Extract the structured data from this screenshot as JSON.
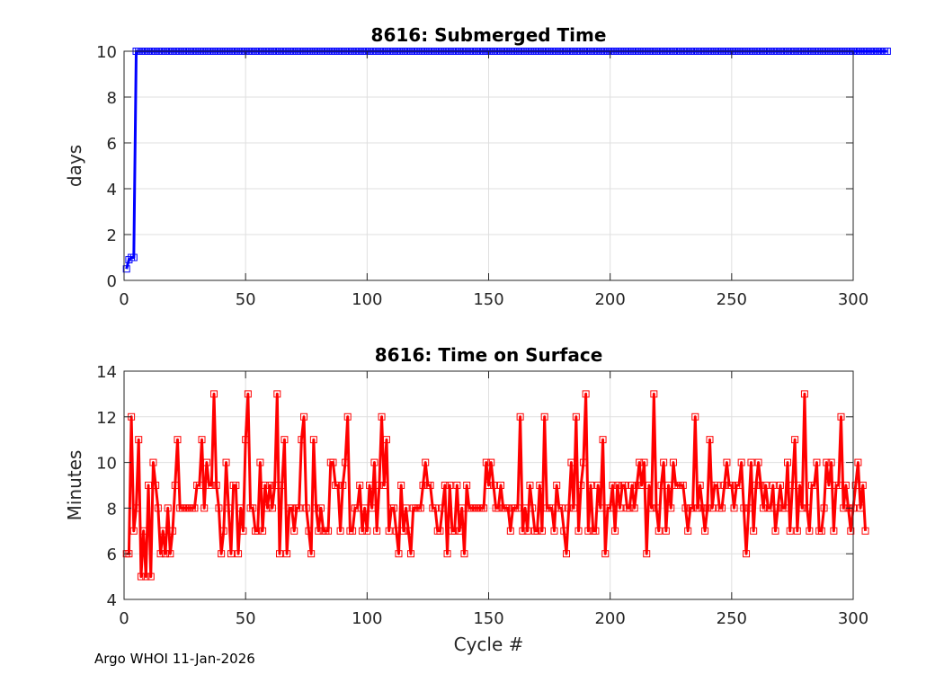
{
  "footer": "Argo WHOI 11-Jan-2026",
  "chart_data": [
    {
      "type": "line",
      "title": "8616: Submerged Time",
      "xlabel": "",
      "ylabel": "days",
      "xlim": [
        0,
        300
      ],
      "ylim": [
        0,
        10
      ],
      "xticks": [
        0,
        50,
        100,
        150,
        200,
        250,
        300
      ],
      "yticks": [
        0,
        2,
        4,
        6,
        8,
        10
      ],
      "grid": true,
      "marker": "square",
      "color": "#0000ff",
      "series": [
        {
          "x_start": 1,
          "values": [
            0.5,
            0.9,
            1.0,
            1.0,
            10,
            10,
            10,
            10,
            10,
            10,
            10,
            10,
            10,
            10,
            10,
            10,
            10,
            10,
            10,
            10,
            10,
            10,
            10,
            10,
            10,
            10,
            10,
            10,
            10,
            10,
            10,
            10,
            10,
            10,
            10,
            10,
            10,
            10,
            10,
            10,
            10,
            10,
            10,
            10,
            10,
            10,
            10,
            10,
            10,
            10,
            10,
            10,
            10,
            10,
            10,
            10,
            10,
            10,
            10,
            10,
            10,
            10,
            10,
            10,
            10,
            10,
            10,
            10,
            10,
            10,
            10,
            10,
            10,
            10,
            10,
            10,
            10,
            10,
            10,
            10,
            10,
            10,
            10,
            10,
            10,
            10,
            10,
            10,
            10,
            10,
            10,
            10,
            10,
            10,
            10,
            10,
            10,
            10,
            10,
            10,
            10,
            10,
            10,
            10,
            10,
            10,
            10,
            10,
            10,
            10,
            10,
            10,
            10,
            10,
            10,
            10,
            10,
            10,
            10,
            10,
            10,
            10,
            10,
            10,
            10,
            10,
            10,
            10,
            10,
            10,
            10,
            10,
            10,
            10,
            10,
            10,
            10,
            10,
            10,
            10,
            10,
            10,
            10,
            10,
            10,
            10,
            10,
            10,
            10,
            10,
            10,
            10,
            10,
            10,
            10,
            10,
            10,
            10,
            10,
            10,
            10,
            10,
            10,
            10,
            10,
            10,
            10,
            10,
            10,
            10,
            10,
            10,
            10,
            10,
            10,
            10,
            10,
            10,
            10,
            10,
            10,
            10,
            10,
            10,
            10,
            10,
            10,
            10,
            10,
            10,
            10,
            10,
            10,
            10,
            10,
            10,
            10,
            10,
            10,
            10,
            10,
            10,
            10,
            10,
            10,
            10,
            10,
            10,
            10,
            10,
            10,
            10,
            10,
            10,
            10,
            10,
            10,
            10,
            10,
            10,
            10,
            10,
            10,
            10,
            10,
            10,
            10,
            10,
            10,
            10,
            10,
            10,
            10,
            10,
            10,
            10,
            10,
            10,
            10,
            10,
            10,
            10,
            10,
            10,
            10,
            10,
            10,
            10,
            10,
            10,
            10,
            10,
            10,
            10,
            10,
            10,
            10,
            10,
            10,
            10,
            10,
            10,
            10,
            10,
            10,
            10,
            10,
            10,
            10,
            10,
            10,
            10,
            10,
            10,
            10,
            10,
            10,
            10,
            10,
            10,
            10,
            10,
            10,
            10,
            10,
            10,
            10,
            10,
            10,
            10,
            10,
            10,
            10,
            10,
            10,
            10,
            10,
            10,
            10,
            10,
            10,
            10,
            10,
            10,
            10,
            10,
            10,
            10,
            10,
            10,
            10,
            10,
            10,
            10
          ]
        }
      ]
    },
    {
      "type": "line",
      "title": "8616: Time on Surface",
      "xlabel": "Cycle #",
      "ylabel": "Minutes",
      "xlim": [
        0,
        300
      ],
      "ylim": [
        4,
        14
      ],
      "xticks": [
        0,
        50,
        100,
        150,
        200,
        250,
        300
      ],
      "yticks": [
        4,
        6,
        8,
        10,
        12,
        14
      ],
      "grid": true,
      "marker": "square",
      "color": "#ff0000",
      "series": [
        {
          "x_start": 1,
          "values": [
            6,
            6,
            12,
            7,
            8,
            11,
            5,
            7,
            5,
            9,
            5,
            10,
            9,
            8,
            6,
            7,
            6,
            8,
            6,
            7,
            9,
            11,
            8,
            8,
            8,
            8,
            8,
            8,
            8,
            9,
            9,
            11,
            8,
            10,
            9,
            9,
            13,
            9,
            8,
            6,
            7,
            10,
            8,
            6,
            9,
            9,
            6,
            8,
            7,
            11,
            13,
            8,
            8,
            7,
            7,
            10,
            7,
            9,
            8,
            9,
            8,
            9,
            13,
            6,
            9,
            11,
            6,
            8,
            8,
            7,
            8,
            8,
            11,
            12,
            8,
            7,
            6,
            11,
            8,
            7,
            8,
            7,
            7,
            7,
            10,
            10,
            9,
            9,
            7,
            9,
            10,
            12,
            7,
            7,
            8,
            8,
            9,
            7,
            8,
            7,
            9,
            8,
            10,
            7,
            9,
            12,
            9,
            11,
            7,
            8,
            8,
            7,
            6,
            9,
            7,
            8,
            7,
            6,
            8,
            8,
            8,
            8,
            9,
            10,
            9,
            9,
            8,
            8,
            7,
            7,
            8,
            9,
            6,
            9,
            7,
            7,
            9,
            7,
            8,
            6,
            9,
            8,
            8,
            8,
            8,
            8,
            8,
            8,
            10,
            9,
            10,
            9,
            8,
            8,
            9,
            8,
            8,
            8,
            7,
            8,
            8,
            8,
            12,
            7,
            8,
            7,
            9,
            8,
            7,
            7,
            9,
            7,
            12,
            8,
            8,
            8,
            7,
            9,
            8,
            8,
            7,
            6,
            8,
            10,
            8,
            12,
            7,
            9,
            10,
            13,
            7,
            9,
            7,
            7,
            9,
            8,
            11,
            6,
            8,
            8,
            9,
            7,
            9,
            8,
            9,
            9,
            8,
            8,
            9,
            8,
            9,
            10,
            9,
            10,
            6,
            9,
            8,
            13,
            8,
            7,
            9,
            10,
            7,
            9,
            8,
            10,
            9,
            9,
            9,
            9,
            8,
            7,
            8,
            8,
            12,
            8,
            9,
            8,
            7,
            8,
            11,
            8,
            9,
            9,
            8,
            8,
            9,
            10,
            9,
            9,
            8,
            9,
            9,
            10,
            8,
            6,
            8,
            10,
            7,
            9,
            10,
            9,
            8,
            9,
            8,
            8,
            9,
            7,
            8,
            9,
            8,
            8,
            10,
            7,
            9,
            11,
            7,
            9,
            8,
            13,
            8,
            7,
            9,
            9,
            10,
            7,
            7,
            8,
            10,
            9,
            10,
            7,
            9,
            9,
            12,
            8,
            9,
            8,
            7,
            8,
            9,
            10,
            8,
            9,
            7
          ]
        }
      ]
    }
  ]
}
